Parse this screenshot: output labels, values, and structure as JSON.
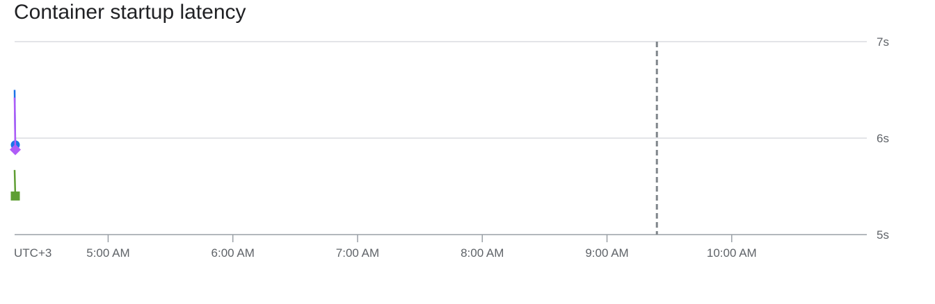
{
  "chart_data": {
    "type": "line",
    "title": "Container startup latency",
    "xlabel": "",
    "ylabel": "",
    "timezone_label": "UTC+3",
    "x_ticks": [
      "5:00 AM",
      "6:00 AM",
      "7:00 AM",
      "8:00 AM",
      "9:00 AM",
      "10:00 AM"
    ],
    "x_range": [
      "4:15 AM",
      "11:05 AM"
    ],
    "y_ticks": [
      "5s",
      "6s",
      "7s"
    ],
    "ylim": [
      5,
      7
    ],
    "grid": true,
    "now_marker": "9:24 AM",
    "series": [
      {
        "color": "#1a73e8",
        "marker": "circle",
        "points": [
          {
            "x": "4:15 AM",
            "y": 6.5
          },
          {
            "x": "4:15 AM",
            "y": 5.93
          }
        ]
      },
      {
        "color": "#af5cf7",
        "marker": "diamond",
        "points": [
          {
            "x": "4:15 AM",
            "y": 6.42
          },
          {
            "x": "4:15 AM",
            "y": 5.88
          }
        ]
      },
      {
        "color": "#5f9e33",
        "marker": "square",
        "points": [
          {
            "x": "4:15 AM",
            "y": 5.67
          },
          {
            "x": "4:15 AM",
            "y": 5.4
          }
        ]
      }
    ]
  }
}
